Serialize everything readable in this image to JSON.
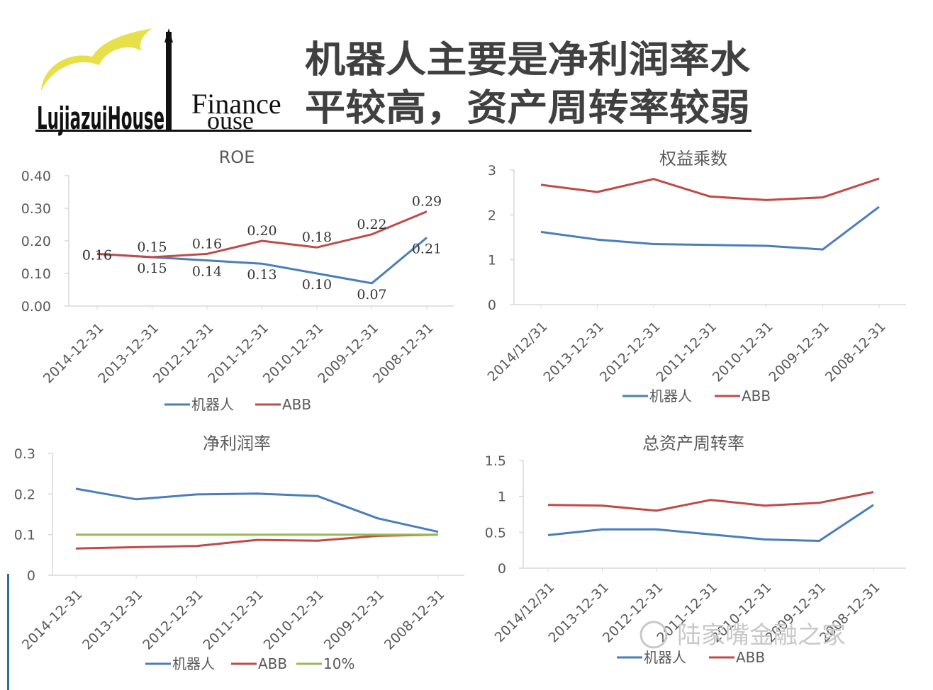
{
  "header": {
    "title_line1": "机器人主要是净利润率水",
    "title_line2": "平较高，资产周转率较弱",
    "logo_name": "LujiazuiHouse",
    "logo_finance": "Finance",
    "logo_house": "ouse"
  },
  "watermark": "陆家嘴金融之家",
  "colors": {
    "robot": "#4a7ebb",
    "abb": "#be4b48",
    "ten": "#98b954"
  },
  "chart_data": [
    {
      "type": "line",
      "title": "ROE",
      "categories": [
        "2014-12-31",
        "2013-12-31",
        "2012-12-31",
        "2011-12-31",
        "2010-12-31",
        "2009-12-31",
        "2008-12-31"
      ],
      "series": [
        {
          "name": "机器人",
          "values": [
            0.16,
            0.15,
            0.14,
            0.13,
            0.1,
            0.07,
            0.21
          ]
        },
        {
          "name": "ABB",
          "values": [
            0.16,
            0.15,
            0.16,
            0.2,
            0.18,
            0.22,
            0.29
          ]
        }
      ],
      "yticks": [
        "0.00",
        "0.10",
        "0.20",
        "0.30",
        "0.40"
      ],
      "ylim": [
        0,
        0.4
      ],
      "data_labels": true,
      "legend": "bottom"
    },
    {
      "type": "line",
      "title": "权益乘数",
      "categories": [
        "2014/12/31",
        "2013-12-31",
        "2012-12-31",
        "2011-12-31",
        "2010-12-31",
        "2009-12-31",
        "2008-12-31"
      ],
      "series": [
        {
          "name": "机器人",
          "values": [
            1.62,
            1.45,
            1.35,
            1.33,
            1.31,
            1.23,
            2.18
          ]
        },
        {
          "name": "ABB",
          "values": [
            2.67,
            2.51,
            2.8,
            2.41,
            2.33,
            2.39,
            2.81
          ]
        }
      ],
      "yticks": [
        "0",
        "1",
        "2",
        "3"
      ],
      "ylim": [
        0,
        3
      ],
      "legend": "bottom"
    },
    {
      "type": "line",
      "title": "净利润率",
      "categories": [
        "2014-12-31",
        "2013-12-31",
        "2012-12-31",
        "2011-12-31",
        "2010-12-31",
        "2009-12-31",
        "2008-12-31"
      ],
      "series": [
        {
          "name": "机器人",
          "values": [
            0.213,
            0.187,
            0.199,
            0.201,
            0.195,
            0.14,
            0.107
          ]
        },
        {
          "name": "ABB",
          "values": [
            0.066,
            0.069,
            0.072,
            0.087,
            0.085,
            0.097,
            0.1
          ]
        },
        {
          "name": "10%",
          "values": [
            0.1,
            0.1,
            0.1,
            0.1,
            0.1,
            0.1,
            0.1
          ]
        }
      ],
      "yticks": [
        "0",
        "0.1",
        "0.2",
        "0.3"
      ],
      "ylim": [
        0,
        0.3
      ],
      "legend": "bottom"
    },
    {
      "type": "line",
      "title": "总资产周转率",
      "categories": [
        "2014/12/31",
        "2013-12-31",
        "2012-12-31",
        "2011-12-31",
        "2010-12-31",
        "2009-12-31",
        "2008-12-31"
      ],
      "series": [
        {
          "name": "机器人",
          "values": [
            0.46,
            0.54,
            0.54,
            0.47,
            0.4,
            0.38,
            0.88
          ]
        },
        {
          "name": "ABB",
          "values": [
            0.88,
            0.87,
            0.8,
            0.95,
            0.87,
            0.91,
            1.06
          ]
        }
      ],
      "yticks": [
        "0",
        "0.5",
        "1",
        "1.5"
      ],
      "ylim": [
        0,
        1.5
      ],
      "legend": "bottom"
    }
  ]
}
